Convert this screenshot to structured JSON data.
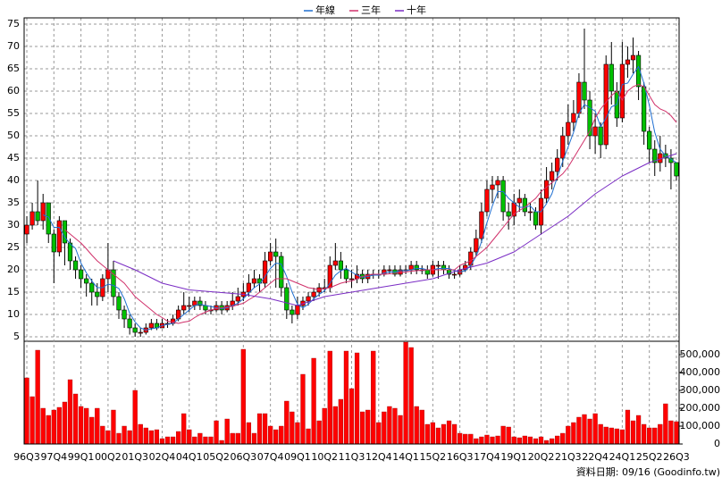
{
  "chart_data": [
    {
      "type": "candlestick",
      "legend": "top",
      "grid": true,
      "categories": [
        "96Q3",
        null,
        null,
        null,
        null,
        "97Q4",
        null,
        null,
        null,
        null,
        "99Q1",
        null,
        null,
        null,
        null,
        "00Q2",
        null,
        null,
        null,
        null,
        "01Q3",
        null,
        null,
        null,
        null,
        "02Q4",
        null,
        null,
        null,
        null,
        "04Q1",
        null,
        null,
        null,
        null,
        "05Q2",
        null,
        null,
        null,
        null,
        "06Q3",
        null,
        null,
        null,
        null,
        "07Q4",
        null,
        null,
        null,
        null,
        "09Q1",
        null,
        null,
        null,
        null,
        "10Q2",
        null,
        null,
        null,
        null,
        "11Q3",
        null,
        null,
        null,
        null,
        "12Q4",
        null,
        null,
        null,
        null,
        "14Q1",
        null,
        null,
        null,
        null,
        "15Q2",
        null,
        null,
        null,
        null,
        "16Q3",
        null,
        null,
        null,
        null,
        "17Q4",
        null,
        null,
        null,
        null,
        "19Q1",
        null,
        null,
        null,
        null,
        "20Q2",
        null,
        null,
        null,
        null,
        "21Q3",
        null,
        null,
        null,
        null,
        "22Q4",
        null,
        null,
        null,
        null,
        "24Q1",
        null,
        null,
        null,
        null,
        "25Q2",
        null,
        null,
        null,
        null,
        "26Q3"
      ],
      "open": [
        28,
        30,
        33,
        31,
        35,
        28,
        24,
        31,
        26,
        22,
        20,
        18,
        17,
        15,
        14,
        18,
        20,
        14,
        11,
        9,
        7,
        6,
        6,
        7,
        8,
        7,
        8,
        8,
        9,
        11,
        12,
        12,
        13,
        12,
        11,
        11,
        12,
        11,
        12,
        13,
        14,
        15,
        17,
        18,
        17,
        22,
        24,
        23,
        16,
        11,
        10,
        12,
        13,
        14,
        15,
        16,
        16,
        21,
        22,
        20,
        18,
        18,
        19,
        18,
        19,
        19,
        19,
        20,
        20,
        19,
        20,
        20,
        21,
        20,
        20,
        19,
        21,
        21,
        20,
        19,
        19,
        20,
        21,
        24,
        27,
        33,
        38,
        39,
        40,
        33,
        32,
        35,
        36,
        33,
        33,
        30,
        36,
        40,
        42,
        45,
        50,
        53,
        55,
        62,
        58,
        50,
        52,
        48,
        66,
        60,
        54,
        66,
        67,
        68,
        61,
        51,
        47,
        44,
        46,
        45,
        44
      ],
      "high": [
        32,
        35,
        40,
        37,
        35,
        29,
        32,
        31,
        27,
        23,
        21,
        19,
        18,
        17,
        19,
        26,
        22,
        15,
        12,
        10,
        8,
        7,
        8,
        9,
        9,
        9,
        9,
        10,
        12,
        15,
        14,
        14,
        14,
        13,
        12,
        13,
        13,
        13,
        15,
        16,
        17,
        19,
        20,
        19,
        24,
        26,
        27,
        24,
        17,
        12,
        14,
        14,
        15,
        16,
        17,
        18,
        23,
        26,
        24,
        21,
        20,
        21,
        20,
        20,
        20,
        20,
        21,
        21,
        21,
        21,
        21,
        22,
        22,
        21,
        21,
        22,
        22,
        22,
        21,
        20,
        21,
        22,
        25,
        29,
        35,
        40,
        41,
        41,
        41,
        35,
        37,
        38,
        37,
        35,
        34,
        38,
        43,
        44,
        47,
        52,
        57,
        58,
        64,
        74,
        60,
        55,
        53,
        68,
        71,
        62,
        71,
        70,
        72,
        69,
        62,
        52,
        49,
        50,
        48,
        47,
        44
      ],
      "low": [
        26,
        29,
        30,
        29,
        26,
        17,
        23,
        21,
        20,
        18,
        16,
        14,
        12,
        12,
        13,
        15,
        12,
        9,
        7,
        5.5,
        5,
        5,
        5.5,
        6.5,
        6.5,
        7,
        7,
        7.5,
        8.5,
        10,
        10.5,
        11,
        11,
        10,
        10,
        10.5,
        10,
        10.5,
        11,
        12,
        13,
        14,
        16,
        15,
        16,
        21,
        16,
        14,
        9,
        8,
        9,
        11,
        12,
        13,
        14,
        15,
        15,
        20,
        18,
        17,
        16,
        17,
        17,
        17,
        18,
        18,
        18.5,
        19,
        18.5,
        18.5,
        19,
        19,
        19,
        19,
        18,
        18.5,
        18,
        19,
        18,
        18,
        18.5,
        19.5,
        20,
        23,
        26,
        32,
        35,
        36,
        31,
        29,
        30,
        33,
        32,
        31,
        29,
        28,
        35,
        38,
        40,
        43,
        48,
        51,
        54,
        56,
        47,
        46,
        45,
        47,
        57,
        52,
        53,
        63,
        64,
        58,
        48,
        44,
        41,
        42,
        43,
        38,
        40
      ],
      "close": [
        30,
        33,
        31,
        35,
        28,
        24,
        31,
        26,
        22,
        20,
        18,
        17,
        15,
        14,
        18,
        20,
        14,
        11,
        9,
        7,
        6,
        6,
        7,
        8,
        7,
        8,
        8,
        9,
        11,
        12,
        12,
        13,
        12,
        11,
        11,
        12,
        11,
        12,
        13,
        14,
        15,
        17,
        18,
        17,
        22,
        24,
        23,
        16,
        11,
        10,
        12,
        13,
        14,
        15,
        16,
        16,
        21,
        22,
        20,
        18,
        18,
        19,
        18,
        19,
        19,
        19,
        20,
        20,
        19,
        20,
        20,
        21,
        20,
        20,
        19,
        21,
        21,
        20,
        19,
        19,
        20,
        21,
        24,
        27,
        33,
        38,
        39,
        40,
        33,
        32,
        35,
        36,
        33,
        33,
        30,
        36,
        40,
        42,
        45,
        50,
        53,
        55,
        62,
        58,
        50,
        52,
        48,
        66,
        60,
        54,
        66,
        67,
        68,
        61,
        51,
        47,
        44,
        46,
        45,
        44,
        41
      ],
      "up_color": "#ff0000",
      "down_color": "#00c000",
      "series": [
        {
          "name": "年線",
          "color": "#1f6fd1",
          "values": [
            null,
            null,
            null,
            32.3,
            31.8,
            29.5,
            29.5,
            27.3,
            25.8,
            24.8,
            21.5,
            19.3,
            17.5,
            16,
            16,
            16.8,
            16.5,
            15.8,
            13.5,
            10.3,
            8.3,
            7,
            6.5,
            6.8,
            7,
            7.5,
            7.8,
            8,
            9,
            10,
            11,
            12,
            12.3,
            12,
            11.8,
            11.5,
            11.3,
            11.5,
            12,
            12.5,
            13.5,
            14.8,
            16,
            16.8,
            18.5,
            20.3,
            21.5,
            21.3,
            18.5,
            15,
            12.3,
            11.5,
            12.3,
            13.5,
            14.5,
            15.3,
            17,
            18.8,
            19.8,
            20.3,
            19.5,
            18.8,
            18.3,
            18.5,
            18.8,
            18.8,
            19.3,
            19.5,
            19.5,
            19.8,
            19.8,
            20,
            20.3,
            20.3,
            20,
            20,
            20.3,
            20.3,
            20.3,
            19.8,
            19.5,
            19.8,
            21,
            23,
            26.3,
            30.5,
            34.3,
            37.5,
            37.5,
            36,
            35,
            34,
            34,
            34.3,
            33,
            33,
            34.8,
            37,
            40.8,
            44.3,
            47.5,
            50.8,
            55,
            57,
            56.3,
            55.5,
            52,
            54,
            56.5,
            57,
            61.5,
            61.8,
            63.8,
            65.5,
            61.8,
            56.8,
            50.8,
            47,
            45.5,
            44.8,
            44
          ]
        },
        {
          "name": "三年",
          "color": "#d0306a",
          "values": [
            null,
            null,
            null,
            null,
            null,
            null,
            null,
            29,
            28,
            27,
            26,
            24.7,
            23.3,
            22,
            21,
            20,
            19,
            18,
            17,
            15.5,
            14,
            13,
            12,
            11,
            10,
            9.3,
            8.5,
            8.3,
            8,
            8.3,
            8.5,
            9.3,
            10,
            10.5,
            11,
            11.3,
            11.5,
            11.7,
            11.8,
            12.2,
            12.5,
            13.3,
            14,
            15,
            16,
            17,
            18,
            18,
            18,
            17.5,
            17,
            16.5,
            16,
            15.8,
            15.5,
            15.8,
            16,
            16.5,
            17,
            17.3,
            17.5,
            18,
            18.5,
            18.8,
            19,
            19,
            19,
            19.1,
            19.2,
            19.4,
            19.5,
            19.7,
            19.8,
            19.9,
            20,
            20,
            20,
            20,
            20,
            20,
            21,
            21.5,
            22,
            23,
            24,
            25,
            26.5,
            28,
            29.5,
            31,
            32.5,
            33.3,
            34,
            35,
            36,
            37.5,
            38.5,
            39.5,
            40.5,
            41.5,
            43,
            45,
            47,
            49,
            51,
            54,
            56,
            57.5,
            59,
            60,
            58,
            60,
            61,
            61.5,
            61,
            59,
            57,
            56,
            55.5,
            54.5,
            53
          ]
        },
        {
          "name": "十年",
          "color": "#7a2cc4",
          "values": [
            null,
            null,
            null,
            null,
            null,
            null,
            null,
            null,
            null,
            null,
            null,
            null,
            null,
            null,
            null,
            null,
            22,
            21.5,
            21,
            20.5,
            20,
            19.4,
            18.8,
            18.2,
            17.6,
            17,
            16.7,
            16.4,
            16.1,
            15.8,
            15.5,
            15.4,
            15.3,
            15.2,
            15.1,
            15,
            14.9,
            14.8,
            14.7,
            14.6,
            14.5,
            14.3,
            14.1,
            13.9,
            13.7,
            13.5,
            13.2,
            12.9,
            12.6,
            12.3,
            12,
            12.4,
            12.8,
            13.2,
            13.6,
            14,
            14.2,
            14.4,
            14.6,
            14.8,
            15,
            15.2,
            15.4,
            15.6,
            15.8,
            16,
            16.2,
            16.4,
            16.6,
            16.8,
            17,
            17.2,
            17.4,
            17.6,
            17.8,
            18,
            18.4,
            18.8,
            19.2,
            19.6,
            20,
            20.3,
            20.6,
            20.9,
            21.2,
            21.5,
            22,
            22.5,
            23,
            23.5,
            24,
            24.8,
            25.6,
            26.4,
            27.2,
            28,
            28.8,
            29.6,
            30.4,
            31.2,
            32,
            33,
            34,
            35,
            36,
            37,
            37.8,
            38.6,
            39.4,
            40.2,
            41,
            41.6,
            42.2,
            42.8,
            43.4,
            44,
            44.4,
            44.8,
            45.2,
            45.6,
            46
          ]
        }
      ],
      "ylim": [
        4,
        76
      ],
      "yticks": [
        5,
        10,
        15,
        20,
        25,
        30,
        35,
        40,
        45,
        50,
        55,
        60,
        65,
        70,
        75
      ]
    },
    {
      "type": "bar",
      "color": "#ff0000",
      "values": [
        370000,
        265000,
        525000,
        200000,
        160000,
        190000,
        205000,
        235000,
        360000,
        280000,
        210000,
        200000,
        150000,
        200000,
        100000,
        75000,
        190000,
        60000,
        100000,
        75000,
        300000,
        110000,
        90000,
        75000,
        80000,
        30000,
        40000,
        40000,
        70000,
        170000,
        80000,
        40000,
        60000,
        40000,
        40000,
        130000,
        20000,
        140000,
        60000,
        60000,
        530000,
        120000,
        60000,
        170000,
        170000,
        100000,
        80000,
        100000,
        240000,
        180000,
        120000,
        390000,
        85000,
        480000,
        130000,
        200000,
        520000,
        210000,
        250000,
        520000,
        310000,
        510000,
        180000,
        190000,
        520000,
        120000,
        180000,
        210000,
        200000,
        160000,
        570000,
        540000,
        210000,
        190000,
        110000,
        120000,
        90000,
        110000,
        130000,
        110000,
        60000,
        55000,
        55000,
        30000,
        40000,
        50000,
        40000,
        45000,
        100000,
        95000,
        40000,
        35000,
        45000,
        40000,
        30000,
        40000,
        20000,
        30000,
        45000,
        60000,
        100000,
        120000,
        150000,
        165000,
        140000,
        170000,
        110000,
        95000,
        90000,
        85000,
        80000,
        190000,
        130000,
        160000,
        110000,
        90000,
        90000,
        110000,
        225000,
        130000,
        125000
      ],
      "ylim": [
        0,
        575000
      ],
      "yticks": [
        0,
        {
          "value": 100000,
          "label": "100,000"
        },
        {
          "value": 200000,
          "label": "200,000"
        },
        {
          "value": 300000,
          "label": "300,000"
        },
        {
          "value": 400000,
          "label": "400,000"
        },
        {
          "value": 500000,
          "label": "500,000"
        }
      ]
    }
  ],
  "footer": "資料日期: 09/16 (Goodinfo.tw)"
}
